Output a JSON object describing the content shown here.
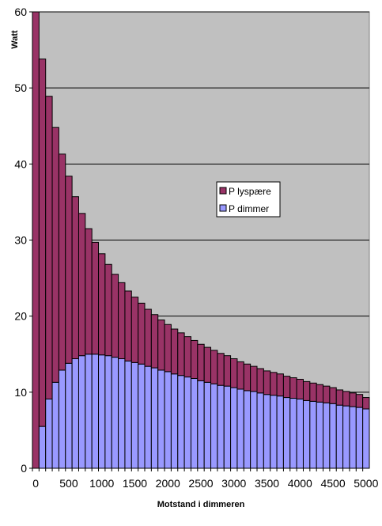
{
  "chart_data": {
    "type": "bar",
    "stacked": true,
    "title": "",
    "xlabel": "Motstand i dimmeren",
    "ylabel": "Watt",
    "ylim": [
      0,
      60
    ],
    "yticks": [
      0,
      10,
      20,
      30,
      40,
      50,
      60
    ],
    "xticks": [
      0,
      500,
      1000,
      1500,
      2000,
      2500,
      3000,
      3500,
      4000,
      4500,
      5000
    ],
    "grid": true,
    "plot_background": "#c0c0c0",
    "legend_position": "center-right",
    "categories": [
      0,
      100,
      200,
      300,
      400,
      500,
      600,
      700,
      800,
      900,
      1000,
      1100,
      1200,
      1300,
      1400,
      1500,
      1600,
      1700,
      1800,
      1900,
      2000,
      2100,
      2200,
      2300,
      2400,
      2500,
      2600,
      2700,
      2800,
      2900,
      3000,
      3100,
      3200,
      3300,
      3400,
      3500,
      3600,
      3700,
      3800,
      3900,
      4000,
      4100,
      4200,
      4300,
      4400,
      4500,
      4600,
      4700,
      4800,
      4900,
      5000
    ],
    "series": [
      {
        "name": "P dimmer",
        "color": "#9999ff",
        "values": [
          0,
          5.5,
          9.1,
          11.3,
          12.9,
          13.8,
          14.4,
          14.8,
          15.0,
          15.0,
          14.9,
          14.8,
          14.6,
          14.4,
          14.1,
          13.9,
          13.7,
          13.4,
          13.2,
          12.9,
          12.7,
          12.4,
          12.2,
          12.0,
          11.8,
          11.5,
          11.3,
          11.1,
          10.9,
          10.8,
          10.6,
          10.4,
          10.2,
          10.1,
          9.9,
          9.7,
          9.6,
          9.5,
          9.3,
          9.2,
          9.1,
          8.9,
          8.8,
          8.7,
          8.6,
          8.5,
          8.3,
          8.2,
          8.1,
          8.0,
          7.8
        ]
      },
      {
        "name": "P lyspære",
        "color": "#993366",
        "values": [
          60,
          48.3,
          39.8,
          33.5,
          28.4,
          24.6,
          21.3,
          18.7,
          16.5,
          14.7,
          13.3,
          12.0,
          10.9,
          10.0,
          9.2,
          8.6,
          8.0,
          7.5,
          7.0,
          6.6,
          6.2,
          5.9,
          5.6,
          5.3,
          5.0,
          4.8,
          4.6,
          4.4,
          4.2,
          4.0,
          3.8,
          3.6,
          3.5,
          3.3,
          3.2,
          3.1,
          3.0,
          2.9,
          2.8,
          2.7,
          2.6,
          2.5,
          2.4,
          2.3,
          2.2,
          2.1,
          2.0,
          1.9,
          1.8,
          1.7,
          1.5
        ]
      }
    ]
  }
}
